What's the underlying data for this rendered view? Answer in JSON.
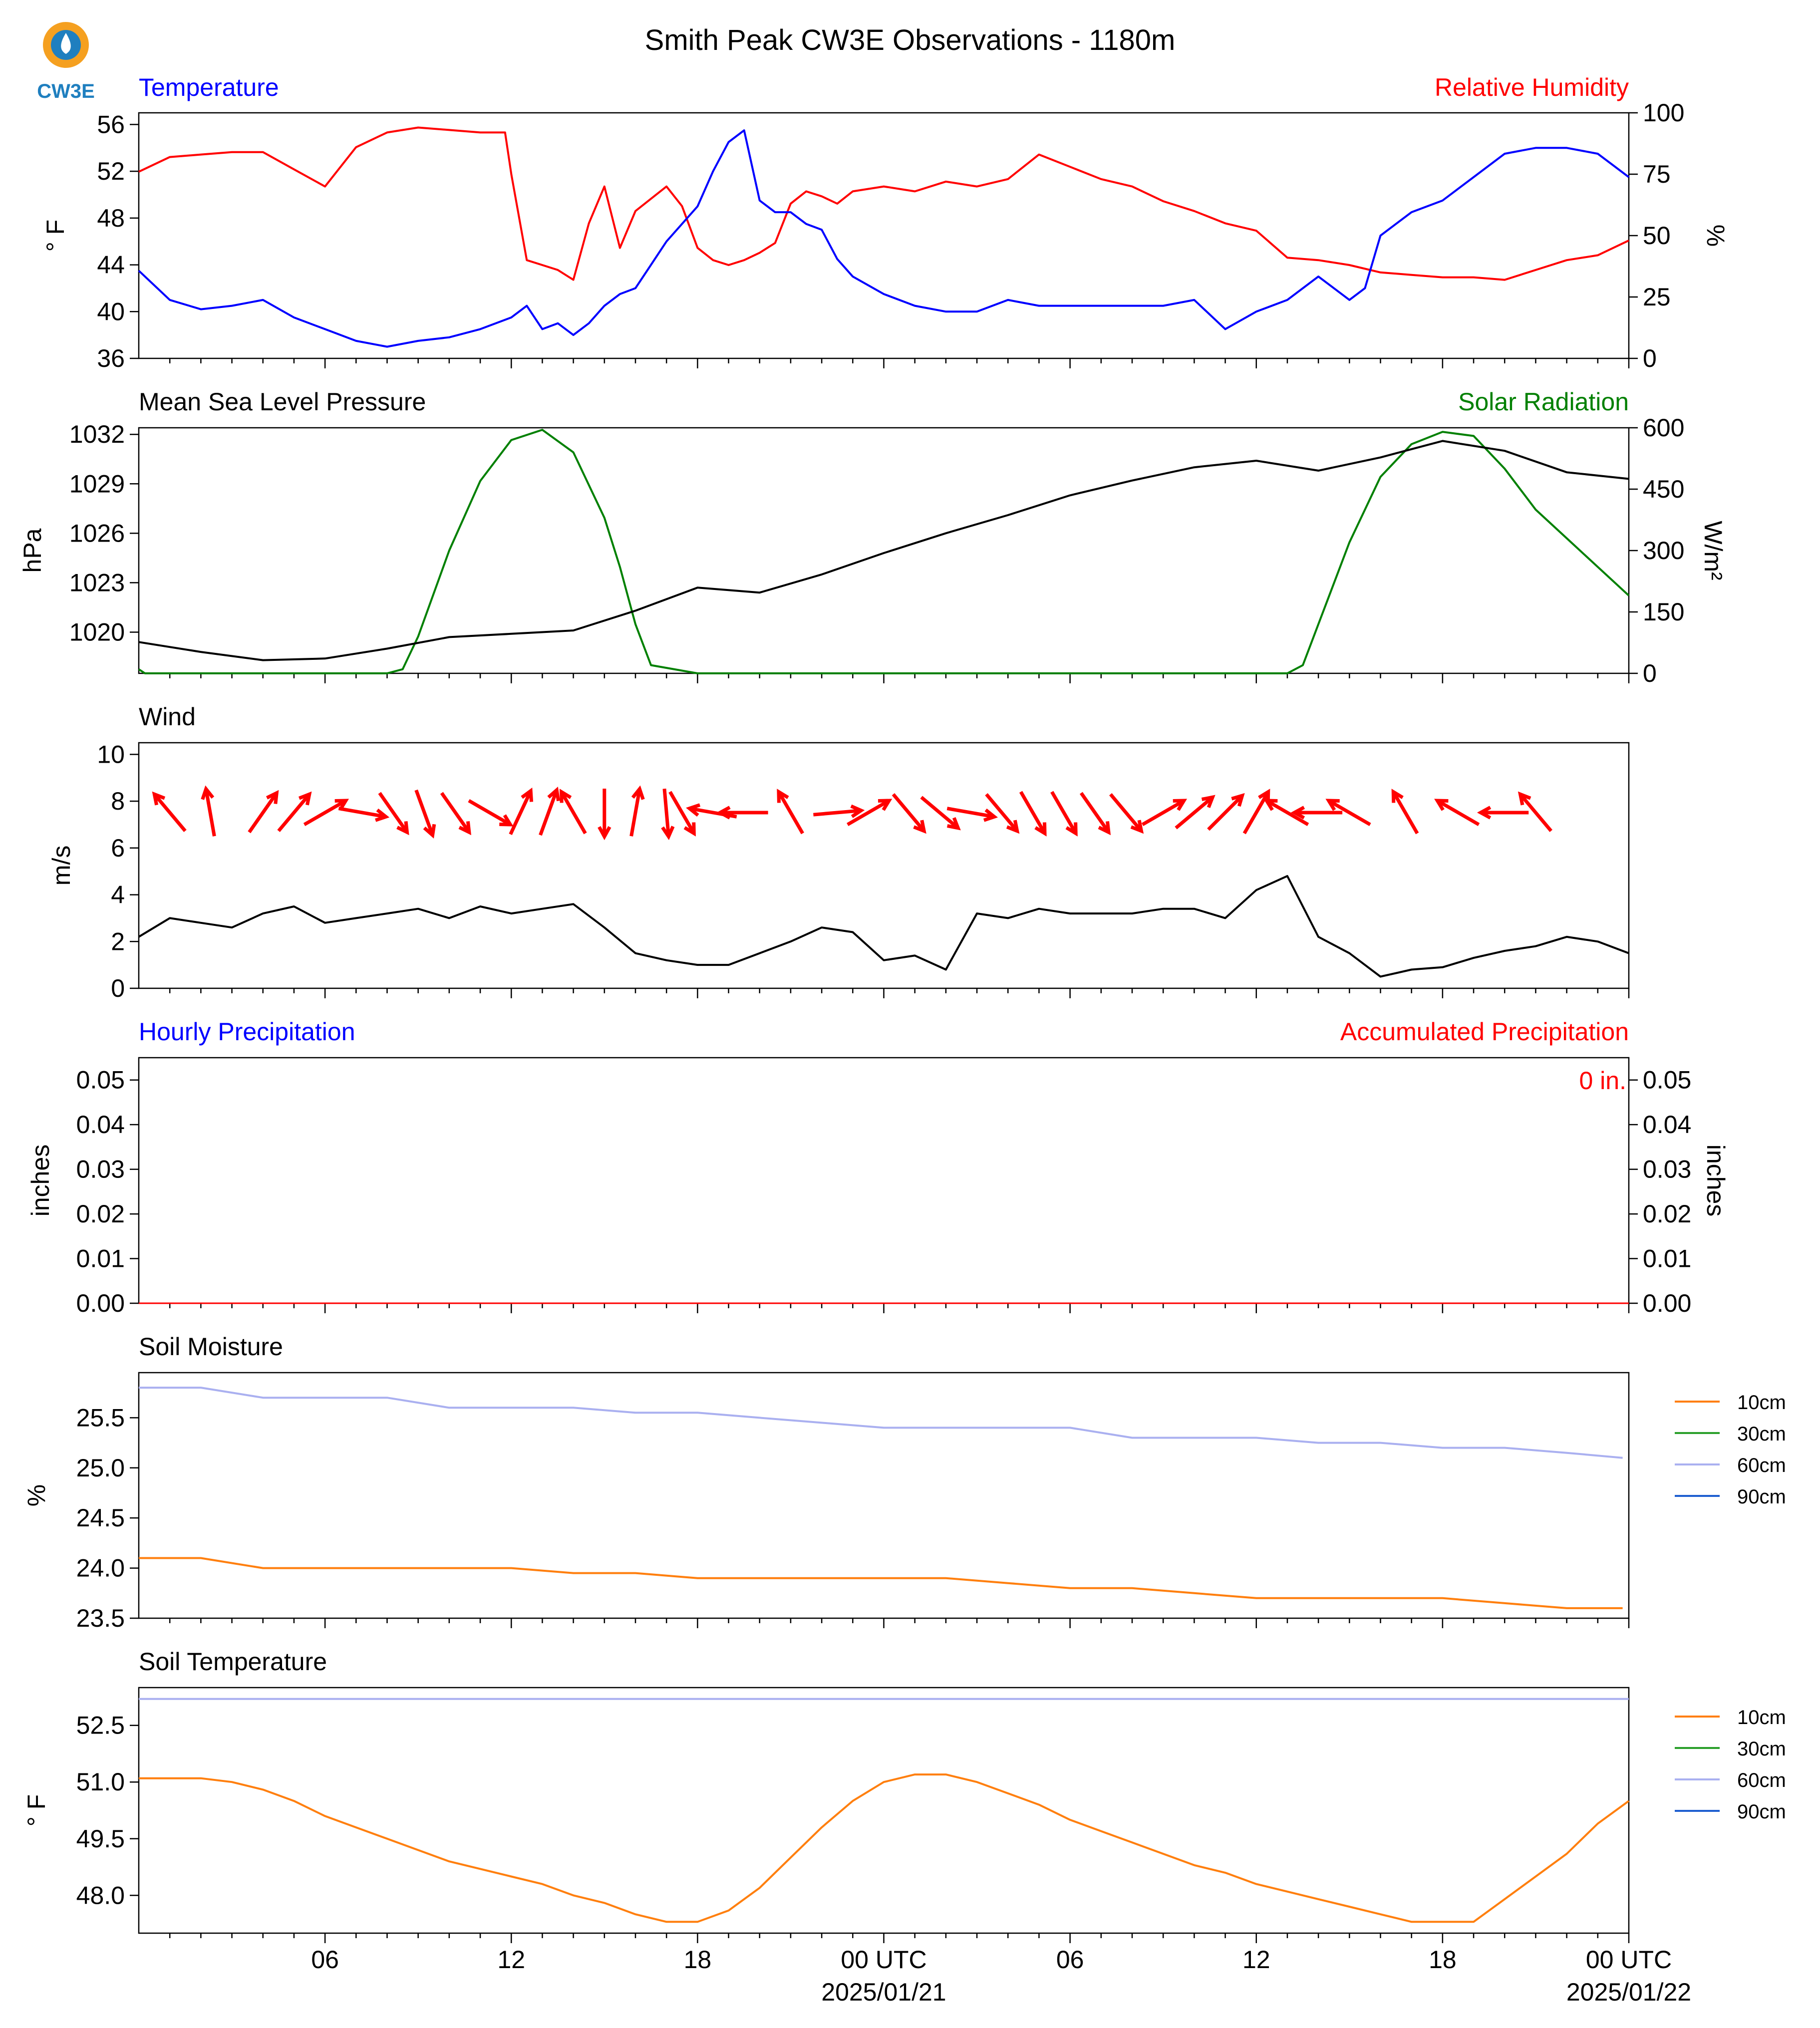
{
  "title": "Smith Peak CW3E Observations - 1180m",
  "logo_text": "CW3E",
  "colors": {
    "temperature": "#0000ff",
    "humidity": "#ff0000",
    "pressure": "#000000",
    "solar": "#008000",
    "wind_speed": "#000000",
    "wind_arrow": "#ff0000",
    "soil_10cm": "#ff7f0e",
    "soil_30cm": "#2ca02c",
    "soil_60cm": "#aab0f0",
    "soil_90cm": "#1f5fd0",
    "logo_orange": "#f5a020",
    "logo_blue": "#1f7fbf"
  },
  "x_axis": {
    "range_hours": [
      -24,
      24
    ],
    "tick_labels": [
      "06",
      "12",
      "18",
      "00 UTC",
      "06",
      "12",
      "18",
      "00 UTC"
    ],
    "date_labels": [
      "2025/01/21",
      "2025/01/22"
    ]
  },
  "chart_data": [
    {
      "id": "temp_rh",
      "type": "line",
      "left_label": "Temperature",
      "right_label": "Relative Humidity",
      "ylabel_left": "° F",
      "ylabel_right": "%",
      "ylim_left": [
        36,
        57
      ],
      "ylim_right": [
        0,
        100
      ],
      "yticks_left": [
        "36",
        "40",
        "44",
        "48",
        "52",
        "56"
      ],
      "yticks_right": [
        "0",
        "25",
        "50",
        "75",
        "100"
      ],
      "series": [
        {
          "name": "Temperature",
          "axis": "left",
          "x": [
            -24,
            -23,
            -22,
            -21,
            -20,
            -19,
            -18,
            -17,
            -16,
            -15,
            -14,
            -13,
            -12,
            -11.5,
            -11,
            -10.5,
            -10,
            -9.5,
            -9,
            -8.5,
            -8,
            -7.5,
            -7,
            -6.5,
            -6,
            -5.5,
            -5,
            -4.5,
            -4,
            -3.5,
            -3,
            -2.5,
            -2,
            -1.5,
            -1,
            0,
            1,
            2,
            3,
            4,
            5,
            6,
            7,
            8,
            9,
            10,
            11,
            12,
            13,
            14,
            15,
            15.5,
            16,
            17,
            18,
            19,
            20,
            21,
            22,
            23,
            23.5,
            24
          ],
          "y": [
            43.5,
            41,
            40.2,
            40.5,
            41,
            39.5,
            38.5,
            37.5,
            37,
            37.5,
            37.8,
            38.5,
            39.5,
            40.5,
            38.5,
            39,
            38,
            39,
            40.5,
            41.5,
            42,
            44,
            46,
            47.5,
            49,
            52,
            54.5,
            55.5,
            49.5,
            48.5,
            48.5,
            47.5,
            47,
            44.5,
            43,
            41.5,
            40.5,
            40,
            40,
            41,
            40.5,
            40.5,
            40.5,
            40.5,
            40.5,
            41,
            38.5,
            40,
            41,
            43,
            41,
            42,
            46.5,
            48.5,
            49.5,
            51.5,
            53.5,
            54,
            54,
            53.5,
            52.5,
            51.5
          ]
        },
        {
          "name": "Relative Humidity",
          "axis": "right",
          "x": [
            -24,
            -23,
            -22,
            -21,
            -20,
            -19,
            -18,
            -17,
            -16,
            -15,
            -14,
            -13,
            -12.2,
            -12,
            -11.5,
            -11,
            -10.5,
            -10,
            -9.5,
            -9,
            -8.5,
            -8,
            -7.5,
            -7,
            -6.5,
            -6,
            -5.5,
            -5,
            -4.5,
            -4,
            -3.5,
            -3,
            -2.5,
            -2,
            -1.5,
            -1,
            0,
            1,
            2,
            3,
            4,
            5,
            6,
            7,
            8,
            9,
            10,
            11,
            12,
            13,
            14,
            15,
            16,
            17,
            18,
            19,
            20,
            21,
            22,
            23,
            24
          ],
          "y": [
            76,
            82,
            83,
            84,
            84,
            77,
            70,
            86,
            92,
            94,
            93,
            92,
            92,
            75,
            40,
            38,
            36,
            32,
            55,
            70,
            45,
            60,
            65,
            70,
            62,
            45,
            40,
            38,
            40,
            43,
            47,
            63,
            68,
            66,
            63,
            68,
            70,
            68,
            72,
            70,
            73,
            83,
            78,
            73,
            70,
            64,
            60,
            55,
            52,
            41,
            40,
            38,
            35,
            34,
            33,
            33,
            32,
            36,
            40,
            42,
            48
          ]
        }
      ]
    },
    {
      "id": "pressure_solar",
      "type": "line",
      "left_label": "Mean Sea Level Pressure",
      "right_label": "Solar Radiation",
      "ylabel_left": "hPa",
      "ylabel_right": "W/m²",
      "ylim_left": [
        1017.5,
        1032.4
      ],
      "ylim_right": [
        0,
        600
      ],
      "yticks_left": [
        "1020",
        "1023",
        "1026",
        "1029",
        "1032"
      ],
      "yticks_right": [
        "0",
        "150",
        "300",
        "450",
        "600"
      ],
      "series": [
        {
          "name": "Mean Sea Level Pressure",
          "axis": "left",
          "x": [
            -24,
            -22,
            -20,
            -18,
            -16,
            -14,
            -12,
            -10,
            -8,
            -6,
            -4,
            -2,
            0,
            2,
            4,
            6,
            8,
            10,
            12,
            14,
            16,
            18,
            20,
            22,
            24
          ],
          "y": [
            1019.4,
            1018.8,
            1018.3,
            1018.4,
            1019.0,
            1019.7,
            1019.9,
            1020.1,
            1021.3,
            1022.7,
            1022.4,
            1023.5,
            1024.8,
            1026.0,
            1027.1,
            1028.3,
            1029.2,
            1030.0,
            1030.4,
            1029.8,
            1030.6,
            1031.6,
            1031.0,
            1029.7,
            1029.3
          ]
        },
        {
          "name": "Solar Radiation",
          "axis": "right",
          "x": [
            -24,
            -23.8,
            -23,
            -16,
            -15.5,
            -15,
            -14,
            -13,
            -12,
            -11,
            -10,
            -9,
            -8.5,
            -8,
            -7.5,
            -6,
            13,
            13.5,
            14,
            15,
            16,
            17,
            18,
            19,
            20,
            21,
            22,
            23,
            24
          ],
          "y": [
            10,
            0,
            0,
            0,
            10,
            90,
            300,
            470,
            570,
            595,
            540,
            380,
            260,
            120,
            20,
            0,
            0,
            20,
            120,
            320,
            480,
            560,
            590,
            580,
            500,
            400,
            330,
            260,
            190
          ]
        }
      ]
    },
    {
      "id": "wind",
      "type": "line",
      "left_label": "Wind",
      "ylabel_left": "m/s",
      "ylim": [
        0,
        10.5
      ],
      "yticks": [
        "0",
        "2",
        "4",
        "6",
        "8",
        "10"
      ],
      "series": [
        {
          "name": "Wind Speed",
          "x": [
            -24,
            -23,
            -22,
            -21,
            -20,
            -19,
            -18,
            -17,
            -16,
            -15,
            -14,
            -13,
            -12,
            -11,
            -10,
            -9,
            -8,
            -7,
            -6,
            -5,
            -4,
            -3,
            -2,
            -1,
            0,
            1,
            2,
            3,
            4,
            5,
            6,
            7,
            8,
            9,
            10,
            11,
            12,
            13,
            14,
            15,
            16,
            17,
            18,
            19,
            20,
            21,
            22,
            23,
            24
          ],
          "y": [
            2.2,
            3.0,
            2.8,
            2.6,
            3.2,
            3.5,
            2.8,
            3.0,
            3.2,
            3.4,
            3.0,
            3.5,
            3.2,
            3.4,
            3.6,
            2.6,
            1.5,
            1.2,
            1.0,
            1.0,
            1.5,
            2.0,
            2.6,
            2.4,
            1.2,
            1.4,
            0.8,
            3.2,
            3.0,
            3.4,
            3.2,
            3.2,
            3.2,
            3.4,
            3.4,
            3.0,
            4.2,
            4.8,
            2.2,
            1.5,
            0.5,
            0.8,
            0.9,
            1.3,
            1.6,
            1.8,
            2.2,
            2.0,
            1.5
          ]
        }
      ],
      "arrows": [
        {
          "x": -23.0,
          "dir": 320
        },
        {
          "x": -21.7,
          "dir": 350
        },
        {
          "x": -20.0,
          "dir": 35
        },
        {
          "x": -19.0,
          "dir": 40
        },
        {
          "x": -18.0,
          "dir": 60
        },
        {
          "x": -16.8,
          "dir": 100
        },
        {
          "x": -15.8,
          "dir": 145
        },
        {
          "x": -14.8,
          "dir": 160
        },
        {
          "x": -13.8,
          "dir": 145
        },
        {
          "x": -12.7,
          "dir": 120
        },
        {
          "x": -11.7,
          "dir": 25
        },
        {
          "x": -10.8,
          "dir": 20
        },
        {
          "x": -10.0,
          "dir": 330
        },
        {
          "x": -9.0,
          "dir": 180
        },
        {
          "x": -8.0,
          "dir": 10
        },
        {
          "x": -7.0,
          "dir": 175
        },
        {
          "x": -6.5,
          "dir": 150
        },
        {
          "x": -5.5,
          "dir": 280
        },
        {
          "x": -4.5,
          "dir": 270
        },
        {
          "x": -3.0,
          "dir": 330
        },
        {
          "x": -1.5,
          "dir": 85
        },
        {
          "x": -0.5,
          "dir": 60
        },
        {
          "x": 0.8,
          "dir": 140
        },
        {
          "x": 1.8,
          "dir": 130
        },
        {
          "x": 2.8,
          "dir": 100
        },
        {
          "x": 3.8,
          "dir": 140
        },
        {
          "x": 4.8,
          "dir": 150
        },
        {
          "x": 5.8,
          "dir": 150
        },
        {
          "x": 6.8,
          "dir": 145
        },
        {
          "x": 7.8,
          "dir": 140
        },
        {
          "x": 9.0,
          "dir": 60
        },
        {
          "x": 10.0,
          "dir": 50
        },
        {
          "x": 11.0,
          "dir": 45
        },
        {
          "x": 12.0,
          "dir": 30
        },
        {
          "x": 13.0,
          "dir": 300
        },
        {
          "x": 14.0,
          "dir": 270
        },
        {
          "x": 15.0,
          "dir": 300
        },
        {
          "x": 16.8,
          "dir": 330
        },
        {
          "x": 18.5,
          "dir": 300
        },
        {
          "x": 20.0,
          "dir": 270
        },
        {
          "x": 21.0,
          "dir": 320
        }
      ]
    },
    {
      "id": "precip",
      "type": "line",
      "left_label": "Hourly Precipitation",
      "right_label": "Accumulated Precipitation",
      "ylabel_left": "inches",
      "ylabel_right": "inches",
      "ylim": [
        0,
        0.055
      ],
      "yticks": [
        "0.00",
        "0.01",
        "0.02",
        "0.03",
        "0.04",
        "0.05"
      ],
      "accumulated_text": "0 in.",
      "series": [
        {
          "name": "Hourly Precipitation",
          "x": [
            -24,
            24
          ],
          "y": [
            0,
            0
          ]
        },
        {
          "name": "Accumulated Precipitation",
          "x": [
            -24,
            24
          ],
          "y": [
            0,
            0
          ]
        }
      ]
    },
    {
      "id": "soil_moisture",
      "type": "line",
      "left_label": "Soil Moisture",
      "ylabel_left": "%",
      "ylim": [
        23.5,
        25.95
      ],
      "yticks": [
        "23.5",
        "24.0",
        "24.5",
        "25.0",
        "25.5"
      ],
      "legend": [
        "10cm",
        "30cm",
        "60cm",
        "90cm"
      ],
      "series": [
        {
          "name": "10cm",
          "x": [
            -24,
            -22,
            -20,
            -18,
            -16,
            -14,
            -12,
            -10,
            -8,
            -6,
            -4,
            -2,
            0,
            2,
            4,
            6,
            8,
            10,
            12,
            14,
            16,
            18,
            20,
            22,
            23.8
          ],
          "y": [
            24.1,
            24.1,
            24.0,
            24.0,
            24.0,
            24.0,
            24.0,
            23.95,
            23.95,
            23.9,
            23.9,
            23.9,
            23.9,
            23.9,
            23.85,
            23.8,
            23.8,
            23.75,
            23.7,
            23.7,
            23.7,
            23.7,
            23.65,
            23.6,
            23.6
          ]
        },
        {
          "name": "60cm",
          "x": [
            -24,
            -22,
            -20,
            -18,
            -16,
            -14,
            -12,
            -10,
            -8,
            -6,
            -4,
            -2,
            0,
            2,
            4,
            6,
            8,
            10,
            12,
            14,
            16,
            18,
            20,
            22,
            23.8
          ],
          "y": [
            25.8,
            25.8,
            25.7,
            25.7,
            25.7,
            25.6,
            25.6,
            25.6,
            25.55,
            25.55,
            25.5,
            25.45,
            25.4,
            25.4,
            25.4,
            25.4,
            25.3,
            25.3,
            25.3,
            25.25,
            25.25,
            25.2,
            25.2,
            25.15,
            25.1
          ]
        }
      ]
    },
    {
      "id": "soil_temp",
      "type": "line",
      "left_label": "Soil Temperature",
      "ylabel_left": "° F",
      "ylim": [
        47.0,
        53.5
      ],
      "yticks": [
        "48.0",
        "49.5",
        "51.0",
        "52.5"
      ],
      "legend": [
        "10cm",
        "30cm",
        "60cm",
        "90cm"
      ],
      "series": [
        {
          "name": "10cm",
          "x": [
            -24,
            -23,
            -22,
            -21,
            -20,
            -19,
            -18,
            -17,
            -16,
            -15,
            -14,
            -13,
            -12,
            -11,
            -10,
            -9,
            -8,
            -7,
            -6,
            -5,
            -4,
            -3,
            -2,
            -1,
            0,
            1,
            2,
            3,
            4,
            5,
            6,
            7,
            8,
            9,
            10,
            11,
            12,
            13,
            14,
            15,
            16,
            17,
            18,
            19,
            20,
            21,
            22,
            23,
            24
          ],
          "y": [
            51.1,
            51.1,
            51.1,
            51.0,
            50.8,
            50.5,
            50.1,
            49.8,
            49.5,
            49.2,
            48.9,
            48.7,
            48.5,
            48.3,
            48.0,
            47.8,
            47.5,
            47.3,
            47.3,
            47.6,
            48.2,
            49.0,
            49.8,
            50.5,
            51.0,
            51.2,
            51.2,
            51.0,
            50.7,
            50.4,
            50.0,
            49.7,
            49.4,
            49.1,
            48.8,
            48.6,
            48.3,
            48.1,
            47.9,
            47.7,
            47.5,
            47.3,
            47.3,
            47.3,
            47.9,
            48.5,
            49.1,
            49.9,
            50.5
          ]
        },
        {
          "name": "60cm",
          "x": [
            -24,
            24
          ],
          "y": [
            53.2,
            53.2
          ]
        }
      ]
    }
  ]
}
